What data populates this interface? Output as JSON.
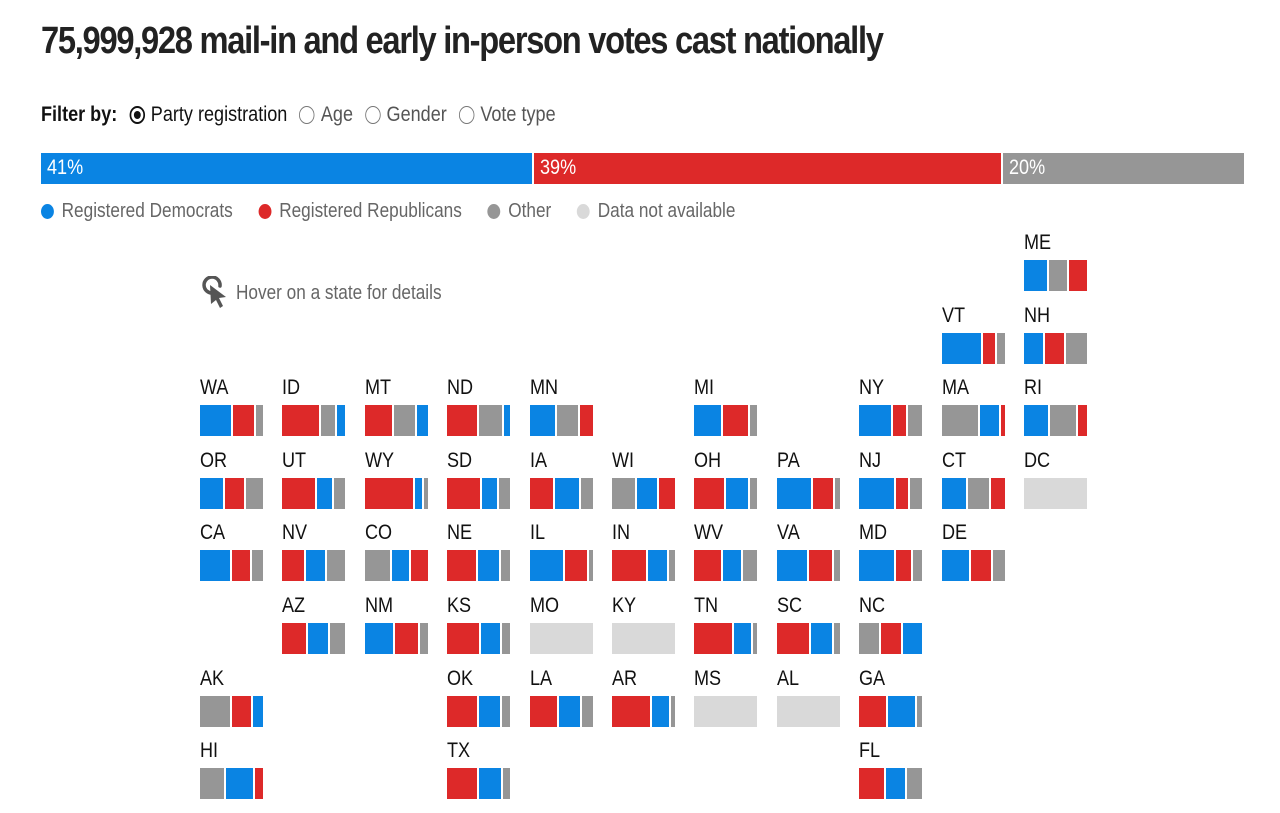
{
  "header": {
    "title": "75,999,928 mail-in and early in-person votes cast nationally"
  },
  "filter": {
    "label": "Filter by:",
    "options": [
      {
        "label": "Party registration",
        "selected": true
      },
      {
        "label": "Age",
        "selected": false
      },
      {
        "label": "Gender",
        "selected": false
      },
      {
        "label": "Vote type",
        "selected": false
      }
    ]
  },
  "colors": {
    "dem": "#0a84e3",
    "rep": "#dd2929",
    "other": "#969696",
    "na": "#d9d9d9"
  },
  "hover_hint": "Hover on a state for details",
  "chart_data": {
    "type": "table",
    "title": "75,999,928 mail-in and early in-person votes cast nationally",
    "national": [
      {
        "category": "dem",
        "label": "41%",
        "value": 41
      },
      {
        "category": "rep",
        "label": "39%",
        "value": 39
      },
      {
        "category": "other",
        "label": "20%",
        "value": 20
      }
    ],
    "legend": [
      {
        "category": "dem",
        "label": "Registered Democrats"
      },
      {
        "category": "rep",
        "label": "Registered Republicans"
      },
      {
        "category": "other",
        "label": "Other"
      },
      {
        "category": "na",
        "label": "Data not available"
      }
    ],
    "states": [
      {
        "code": "ME",
        "row": 0,
        "col": 10,
        "segments": [
          [
            "dem",
            40
          ],
          [
            "other",
            31
          ],
          [
            "rep",
            29
          ]
        ]
      },
      {
        "code": "VT",
        "row": 1,
        "col": 9,
        "segments": [
          [
            "dem",
            65
          ],
          [
            "rep",
            22
          ],
          [
            "other",
            13
          ]
        ]
      },
      {
        "code": "NH",
        "row": 1,
        "col": 10,
        "segments": [
          [
            "dem",
            34
          ],
          [
            "rep",
            33
          ],
          [
            "other",
            33
          ]
        ]
      },
      {
        "code": "WA",
        "row": 2,
        "col": 0,
        "segments": [
          [
            "dem",
            53
          ],
          [
            "rep",
            36
          ],
          [
            "other",
            11
          ]
        ]
      },
      {
        "code": "ID",
        "row": 2,
        "col": 1,
        "segments": [
          [
            "rep",
            62
          ],
          [
            "other",
            25
          ],
          [
            "dem",
            13
          ]
        ]
      },
      {
        "code": "MT",
        "row": 2,
        "col": 2,
        "segments": [
          [
            "rep",
            46
          ],
          [
            "other",
            36
          ],
          [
            "dem",
            18
          ]
        ]
      },
      {
        "code": "ND",
        "row": 2,
        "col": 3,
        "segments": [
          [
            "rep",
            50
          ],
          [
            "other",
            40
          ],
          [
            "dem",
            10
          ]
        ]
      },
      {
        "code": "MN",
        "row": 2,
        "col": 4,
        "segments": [
          [
            "dem",
            43
          ],
          [
            "other",
            37
          ],
          [
            "rep",
            20
          ]
        ]
      },
      {
        "code": "MI",
        "row": 2,
        "col": 6,
        "segments": [
          [
            "dem",
            46
          ],
          [
            "rep",
            43
          ],
          [
            "other",
            11
          ]
        ]
      },
      {
        "code": "NY",
        "row": 2,
        "col": 8,
        "segments": [
          [
            "dem",
            54
          ],
          [
            "rep",
            24
          ],
          [
            "other",
            22
          ]
        ]
      },
      {
        "code": "MA",
        "row": 2,
        "col": 9,
        "segments": [
          [
            "other",
            61
          ],
          [
            "dem",
            32
          ],
          [
            "rep",
            7
          ]
        ]
      },
      {
        "code": "RI",
        "row": 2,
        "col": 10,
        "segments": [
          [
            "dem",
            42
          ],
          [
            "other",
            44
          ],
          [
            "rep",
            14
          ]
        ]
      },
      {
        "code": "OR",
        "row": 3,
        "col": 0,
        "segments": [
          [
            "dem",
            40
          ],
          [
            "rep",
            33
          ],
          [
            "other",
            27
          ]
        ]
      },
      {
        "code": "UT",
        "row": 3,
        "col": 1,
        "segments": [
          [
            "rep",
            55
          ],
          [
            "dem",
            28
          ],
          [
            "other",
            17
          ]
        ]
      },
      {
        "code": "WY",
        "row": 3,
        "col": 2,
        "segments": [
          [
            "rep",
            80
          ],
          [
            "dem",
            13
          ],
          [
            "other",
            7
          ]
        ]
      },
      {
        "code": "SD",
        "row": 3,
        "col": 3,
        "segments": [
          [
            "rep",
            55
          ],
          [
            "dem",
            27
          ],
          [
            "other",
            18
          ]
        ]
      },
      {
        "code": "IA",
        "row": 3,
        "col": 4,
        "segments": [
          [
            "rep",
            39
          ],
          [
            "dem",
            42
          ],
          [
            "other",
            19
          ]
        ]
      },
      {
        "code": "WI",
        "row": 3,
        "col": 5,
        "segments": [
          [
            "other",
            40
          ],
          [
            "dem",
            34
          ],
          [
            "rep",
            26
          ]
        ]
      },
      {
        "code": "OH",
        "row": 3,
        "col": 6,
        "segments": [
          [
            "rep",
            50
          ],
          [
            "dem",
            39
          ],
          [
            "other",
            11
          ]
        ]
      },
      {
        "code": "PA",
        "row": 3,
        "col": 7,
        "segments": [
          [
            "dem",
            57
          ],
          [
            "rep",
            35
          ],
          [
            "other",
            8
          ]
        ]
      },
      {
        "code": "NJ",
        "row": 3,
        "col": 8,
        "segments": [
          [
            "dem",
            59
          ],
          [
            "rep",
            22
          ],
          [
            "other",
            19
          ]
        ]
      },
      {
        "code": "CT",
        "row": 3,
        "col": 9,
        "segments": [
          [
            "dem",
            42
          ],
          [
            "other",
            35
          ],
          [
            "rep",
            23
          ]
        ]
      },
      {
        "code": "DC",
        "row": 3,
        "col": 10,
        "segments": [
          [
            "na",
            100
          ]
        ]
      },
      {
        "code": "CA",
        "row": 4,
        "col": 0,
        "segments": [
          [
            "dem",
            50
          ],
          [
            "rep",
            32
          ],
          [
            "other",
            18
          ]
        ]
      },
      {
        "code": "NV",
        "row": 4,
        "col": 1,
        "segments": [
          [
            "rep",
            38
          ],
          [
            "dem",
            33
          ],
          [
            "other",
            29
          ]
        ]
      },
      {
        "code": "CO",
        "row": 4,
        "col": 2,
        "segments": [
          [
            "other",
            43
          ],
          [
            "dem",
            30
          ],
          [
            "rep",
            27
          ]
        ]
      },
      {
        "code": "NE",
        "row": 4,
        "col": 3,
        "segments": [
          [
            "rep",
            49
          ],
          [
            "dem",
            37
          ],
          [
            "other",
            14
          ]
        ]
      },
      {
        "code": "IL",
        "row": 4,
        "col": 4,
        "segments": [
          [
            "dem",
            56
          ],
          [
            "rep",
            37
          ],
          [
            "other",
            7
          ]
        ]
      },
      {
        "code": "IN",
        "row": 4,
        "col": 5,
        "segments": [
          [
            "rep",
            57
          ],
          [
            "dem",
            34
          ],
          [
            "other",
            9
          ]
        ]
      },
      {
        "code": "WV",
        "row": 4,
        "col": 6,
        "segments": [
          [
            "rep",
            46
          ],
          [
            "dem",
            32
          ],
          [
            "other",
            22
          ]
        ]
      },
      {
        "code": "VA",
        "row": 4,
        "col": 7,
        "segments": [
          [
            "dem",
            51
          ],
          [
            "rep",
            39
          ],
          [
            "other",
            10
          ]
        ]
      },
      {
        "code": "MD",
        "row": 4,
        "col": 8,
        "segments": [
          [
            "dem",
            58
          ],
          [
            "rep",
            27
          ],
          [
            "other",
            15
          ]
        ]
      },
      {
        "code": "DE",
        "row": 4,
        "col": 9,
        "segments": [
          [
            "dem",
            46
          ],
          [
            "rep",
            35
          ],
          [
            "other",
            19
          ]
        ]
      },
      {
        "code": "AZ",
        "row": 5,
        "col": 1,
        "segments": [
          [
            "rep",
            42
          ],
          [
            "dem",
            34
          ],
          [
            "other",
            24
          ]
        ]
      },
      {
        "code": "NM",
        "row": 5,
        "col": 2,
        "segments": [
          [
            "dem",
            47
          ],
          [
            "rep",
            40
          ],
          [
            "other",
            13
          ]
        ]
      },
      {
        "code": "KS",
        "row": 5,
        "col": 3,
        "segments": [
          [
            "rep",
            54
          ],
          [
            "dem",
            33
          ],
          [
            "other",
            13
          ]
        ]
      },
      {
        "code": "MO",
        "row": 5,
        "col": 4,
        "segments": [
          [
            "na",
            100
          ]
        ]
      },
      {
        "code": "KY",
        "row": 5,
        "col": 5,
        "segments": [
          [
            "na",
            100
          ]
        ]
      },
      {
        "code": "TN",
        "row": 5,
        "col": 6,
        "segments": [
          [
            "rep",
            64
          ],
          [
            "dem",
            29
          ],
          [
            "other",
            7
          ]
        ]
      },
      {
        "code": "SC",
        "row": 5,
        "col": 7,
        "segments": [
          [
            "rep",
            54
          ],
          [
            "dem",
            36
          ],
          [
            "other",
            10
          ]
        ]
      },
      {
        "code": "NC",
        "row": 5,
        "col": 8,
        "segments": [
          [
            "other",
            35
          ],
          [
            "rep",
            35
          ],
          [
            "dem",
            30
          ]
        ]
      },
      {
        "code": "AK",
        "row": 6,
        "col": 0,
        "segments": [
          [
            "other",
            50
          ],
          [
            "rep",
            34
          ],
          [
            "dem",
            16
          ]
        ]
      },
      {
        "code": "OK",
        "row": 6,
        "col": 3,
        "segments": [
          [
            "rep",
            51
          ],
          [
            "dem",
            36
          ],
          [
            "other",
            13
          ]
        ]
      },
      {
        "code": "LA",
        "row": 6,
        "col": 4,
        "segments": [
          [
            "rep",
            46
          ],
          [
            "dem",
            36
          ],
          [
            "other",
            18
          ]
        ]
      },
      {
        "code": "AR",
        "row": 6,
        "col": 5,
        "segments": [
          [
            "rep",
            64
          ],
          [
            "dem",
            29
          ],
          [
            "other",
            7
          ]
        ]
      },
      {
        "code": "MS",
        "row": 6,
        "col": 6,
        "segments": [
          [
            "na",
            100
          ]
        ]
      },
      {
        "code": "AL",
        "row": 6,
        "col": 7,
        "segments": [
          [
            "na",
            100
          ]
        ]
      },
      {
        "code": "GA",
        "row": 6,
        "col": 8,
        "segments": [
          [
            "rep",
            46
          ],
          [
            "dem",
            46
          ],
          [
            "other",
            8
          ]
        ]
      },
      {
        "code": "HI",
        "row": 7,
        "col": 0,
        "segments": [
          [
            "other",
            42
          ],
          [
            "dem",
            45
          ],
          [
            "rep",
            13
          ]
        ]
      },
      {
        "code": "TX",
        "row": 7,
        "col": 3,
        "segments": [
          [
            "rep",
            50
          ],
          [
            "dem",
            39
          ],
          [
            "other",
            11
          ]
        ]
      },
      {
        "code": "FL",
        "row": 7,
        "col": 8,
        "segments": [
          [
            "rep",
            43
          ],
          [
            "dem",
            34
          ],
          [
            "other",
            23
          ]
        ]
      }
    ]
  }
}
